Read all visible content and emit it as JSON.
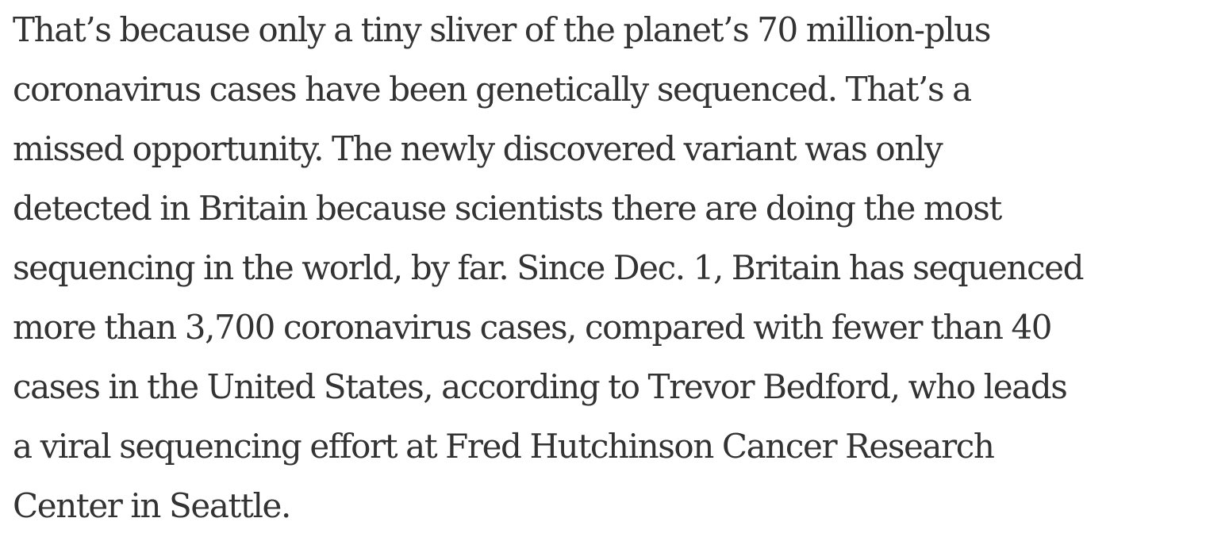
{
  "article": {
    "paragraph_lines": [
      "That’s because only a tiny sliver of the planet’s 70 million-plus",
      "coronavirus cases have been genetically sequenced. That’s a",
      "missed opportunity. The newly discovered variant was only",
      "detected in Britain because scientists there are doing the most",
      "sequencing in the world, by far. Since Dec. 1, Britain has sequenced",
      "more than 3,700 coronavirus cases, compared with fewer than 40",
      "cases in the United States, according to Trevor Bedford, who leads",
      "a viral sequencing effort at Fred Hutchinson Cancer Research",
      "Center in Seattle."
    ]
  }
}
